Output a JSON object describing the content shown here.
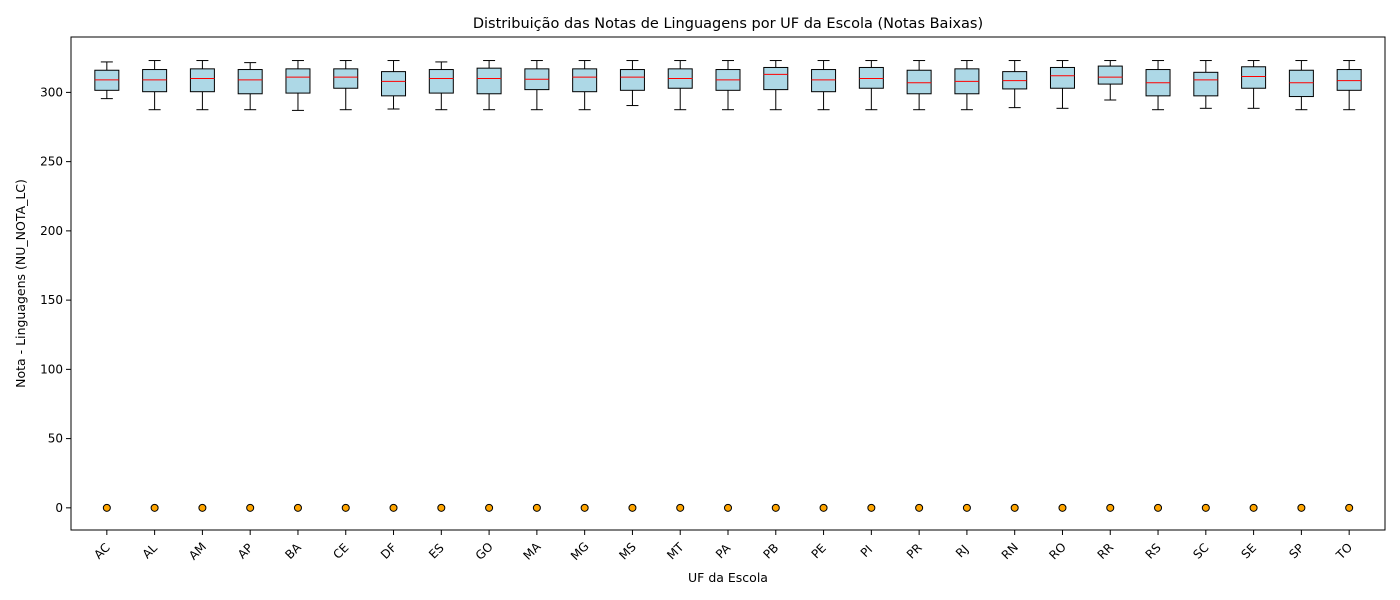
{
  "chart_data": {
    "type": "boxplot",
    "title": "Distribuição das Notas de Linguagens por UF da Escola (Notas Baixas)",
    "xlabel": "UF da Escola",
    "ylabel": "Nota - Linguagens (NU_NOTA_LC)",
    "ylim": [
      -16,
      340
    ],
    "yticks": [
      0,
      50,
      100,
      150,
      200,
      250,
      300
    ],
    "grid": false,
    "colors": {
      "box_fill": "#add8e6",
      "median": "#ff0000",
      "outlier": "#ffa500",
      "edge": "#000000"
    },
    "categories": [
      "AC",
      "AL",
      "AM",
      "AP",
      "BA",
      "CE",
      "DF",
      "ES",
      "GO",
      "MA",
      "MG",
      "MS",
      "MT",
      "PA",
      "PB",
      "PE",
      "PI",
      "PR",
      "RJ",
      "RN",
      "RO",
      "RR",
      "RS",
      "SC",
      "SE",
      "SP",
      "TO"
    ],
    "boxes": [
      {
        "whislo": 295.5,
        "q1": 301.5,
        "med": 309,
        "q3": 316,
        "whishi": 322,
        "fliers": [
          0
        ]
      },
      {
        "whislo": 287.5,
        "q1": 300.5,
        "med": 309,
        "q3": 316.5,
        "whishi": 323,
        "fliers": [
          0
        ]
      },
      {
        "whislo": 287.5,
        "q1": 300.5,
        "med": 310,
        "q3": 317,
        "whishi": 323,
        "fliers": [
          0
        ]
      },
      {
        "whislo": 287.5,
        "q1": 299,
        "med": 309,
        "q3": 316.5,
        "whishi": 321.5,
        "fliers": [
          0
        ]
      },
      {
        "whislo": 287,
        "q1": 299.5,
        "med": 311,
        "q3": 317,
        "whishi": 323,
        "fliers": [
          0
        ]
      },
      {
        "whislo": 287.5,
        "q1": 303,
        "med": 311,
        "q3": 317,
        "whishi": 323,
        "fliers": [
          0
        ]
      },
      {
        "whislo": 288,
        "q1": 297.5,
        "med": 308,
        "q3": 315,
        "whishi": 323,
        "fliers": [
          0
        ]
      },
      {
        "whislo": 287.5,
        "q1": 299.5,
        "med": 310,
        "q3": 316.5,
        "whishi": 322,
        "fliers": [
          0
        ]
      },
      {
        "whislo": 287.5,
        "q1": 299,
        "med": 310,
        "q3": 317.5,
        "whishi": 323,
        "fliers": [
          0
        ]
      },
      {
        "whislo": 287.5,
        "q1": 302,
        "med": 309.5,
        "q3": 317,
        "whishi": 323,
        "fliers": [
          0
        ]
      },
      {
        "whislo": 287.5,
        "q1": 300.5,
        "med": 311,
        "q3": 317,
        "whishi": 323,
        "fliers": [
          0
        ]
      },
      {
        "whislo": 290.5,
        "q1": 301.5,
        "med": 311,
        "q3": 316.5,
        "whishi": 323,
        "fliers": [
          0
        ]
      },
      {
        "whislo": 287.5,
        "q1": 303,
        "med": 310,
        "q3": 317,
        "whishi": 323,
        "fliers": [
          0
        ]
      },
      {
        "whislo": 287.5,
        "q1": 301.5,
        "med": 309,
        "q3": 316.5,
        "whishi": 323,
        "fliers": [
          0
        ]
      },
      {
        "whislo": 287.5,
        "q1": 302,
        "med": 313,
        "q3": 318,
        "whishi": 323,
        "fliers": [
          0
        ]
      },
      {
        "whislo": 287.5,
        "q1": 300.5,
        "med": 309,
        "q3": 316.5,
        "whishi": 323,
        "fliers": [
          0
        ]
      },
      {
        "whislo": 287.5,
        "q1": 303,
        "med": 310,
        "q3": 318,
        "whishi": 323,
        "fliers": [
          0
        ]
      },
      {
        "whislo": 287.5,
        "q1": 299,
        "med": 307,
        "q3": 316,
        "whishi": 323,
        "fliers": [
          0
        ]
      },
      {
        "whislo": 287.5,
        "q1": 299,
        "med": 308,
        "q3": 317,
        "whishi": 323,
        "fliers": [
          0
        ]
      },
      {
        "whislo": 289,
        "q1": 302.5,
        "med": 308.5,
        "q3": 315,
        "whishi": 323,
        "fliers": [
          0
        ]
      },
      {
        "whislo": 288.5,
        "q1": 303,
        "med": 312,
        "q3": 318,
        "whishi": 323,
        "fliers": [
          0
        ]
      },
      {
        "whislo": 294.5,
        "q1": 306,
        "med": 311,
        "q3": 319,
        "whishi": 323,
        "fliers": [
          0
        ]
      },
      {
        "whislo": 287.5,
        "q1": 297.5,
        "med": 307,
        "q3": 316.5,
        "whishi": 323,
        "fliers": [
          0
        ]
      },
      {
        "whislo": 288.5,
        "q1": 297.5,
        "med": 309,
        "q3": 314.5,
        "whishi": 323,
        "fliers": [
          0
        ]
      },
      {
        "whislo": 288.5,
        "q1": 303,
        "med": 311.5,
        "q3": 318.5,
        "whishi": 323,
        "fliers": [
          0
        ]
      },
      {
        "whislo": 287.5,
        "q1": 297,
        "med": 307,
        "q3": 316,
        "whishi": 323,
        "fliers": [
          0
        ]
      },
      {
        "whislo": 287.5,
        "q1": 301.5,
        "med": 308.5,
        "q3": 316.5,
        "whishi": 323,
        "fliers": [
          0
        ]
      }
    ]
  }
}
